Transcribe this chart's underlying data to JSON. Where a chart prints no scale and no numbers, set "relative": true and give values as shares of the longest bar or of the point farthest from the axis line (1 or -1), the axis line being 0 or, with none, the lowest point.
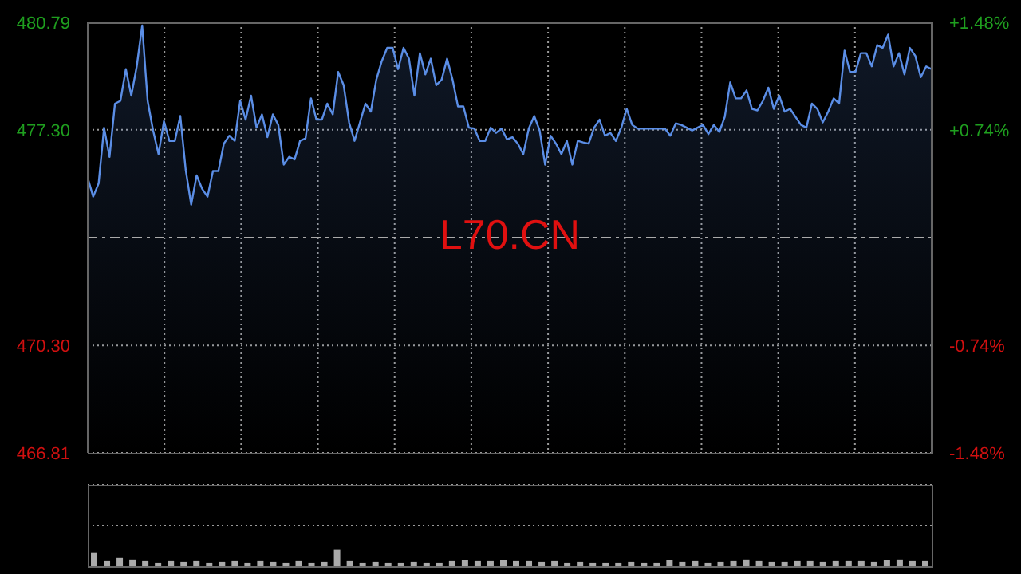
{
  "chart_data": [
    {
      "type": "area",
      "annotations": [
        "L70.CN"
      ],
      "categories": [
        null,
        null,
        null,
        null,
        null,
        null,
        null,
        null,
        null,
        null,
        null,
        null,
        null,
        null,
        null,
        null,
        null,
        null,
        null,
        null,
        null,
        null,
        null,
        null,
        null,
        null,
        null,
        null,
        null,
        null,
        null,
        null,
        null,
        null,
        null,
        null,
        null,
        null,
        null,
        null,
        null,
        null,
        null,
        null,
        null,
        null,
        null,
        null,
        null,
        null,
        null,
        null,
        null,
        null,
        null,
        null,
        null,
        null,
        null,
        null,
        null,
        null,
        null,
        null,
        null,
        null,
        null,
        null,
        null,
        null,
        null,
        null,
        null,
        null,
        null,
        null,
        null,
        null,
        null,
        null,
        null,
        null,
        null,
        null,
        null,
        null,
        null,
        null,
        null,
        null,
        null,
        null,
        null,
        null,
        null,
        null,
        null,
        null,
        null,
        null,
        null,
        null,
        null,
        null,
        null,
        null,
        null,
        null,
        null,
        null,
        null,
        null,
        null,
        null,
        null,
        null,
        null,
        null,
        null,
        null,
        null,
        null,
        null,
        null,
        null,
        null,
        null,
        null,
        null,
        null,
        null,
        null,
        null,
        null,
        null,
        null,
        null,
        null,
        null,
        null,
        null,
        null,
        null,
        null,
        null,
        null,
        null,
        null,
        null,
        null,
        null,
        null,
        null,
        null,
        null,
        null
      ],
      "series": [
        {
          "color": "#5b8ee6",
          "values": [
            475.73,
            475.13,
            475.56,
            477.37,
            476.42,
            478.15,
            478.24,
            479.27,
            478.41,
            479.36,
            480.69,
            478.24,
            477.28,
            476.51,
            477.58,
            476.94,
            476.94,
            477.75,
            475.99,
            474.87,
            475.82,
            475.39,
            475.13,
            475.96,
            475.96,
            476.85,
            477.11,
            476.94,
            478.24,
            477.63,
            478.41,
            477.37,
            477.8,
            477.06,
            477.8,
            477.46,
            476.17,
            476.42,
            476.34,
            476.94,
            477.02,
            478.32,
            477.63,
            477.63,
            478.15,
            477.8,
            479.18,
            478.75,
            477.54,
            476.94,
            477.54,
            478.15,
            477.89,
            478.93,
            479.53,
            479.96,
            479.96,
            479.27,
            479.96,
            479.61,
            478.41,
            479.79,
            479.1,
            479.61,
            478.75,
            478.93,
            479.61,
            478.93,
            478.06,
            478.06,
            477.37,
            477.34,
            476.94,
            476.94,
            477.37,
            477.2,
            477.34,
            476.99,
            477.06,
            476.85,
            476.51,
            477.34,
            477.75,
            477.28,
            476.17,
            477.11,
            476.85,
            476.51,
            476.94,
            476.17,
            476.94,
            476.89,
            476.85,
            477.37,
            477.63,
            477.11,
            477.2,
            476.94,
            477.37,
            477.98,
            477.46,
            477.34,
            477.34,
            477.34,
            477.34,
            477.34,
            477.34,
            477.11,
            477.51,
            477.46,
            477.37,
            477.28,
            477.37,
            477.46,
            477.16,
            477.46,
            477.23,
            477.72,
            478.84,
            478.32,
            478.32,
            478.58,
            477.98,
            477.93,
            478.24,
            478.67,
            477.98,
            478.41,
            477.89,
            477.98,
            477.72,
            477.46,
            477.37,
            478.15,
            477.98,
            477.54,
            477.89,
            478.32,
            478.15,
            479.87,
            479.18,
            479.18,
            479.79,
            479.79,
            479.36,
            480.05,
            479.96,
            480.39,
            479.36,
            479.79,
            479.1,
            479.96,
            479.7,
            479.01,
            479.36,
            479.27
          ]
        }
      ],
      "ylim": [
        466.81,
        480.79
      ],
      "yticks": [
        466.81,
        {
          "value": 470.3,
          "label": "470.30"
        },
        {
          "value": 477.3,
          "label": "477.30"
        },
        480.79
      ],
      "y2lim": [
        -1.48,
        1.48
      ],
      "y2ticks": [
        {
          "value": -1.48,
          "label": "-1.48%"
        },
        {
          "value": -0.74,
          "label": "-0.74%"
        },
        {
          "value": 0.74,
          "label": "+0.74%"
        },
        {
          "value": 1.48,
          "label": "+1.48%"
        }
      ],
      "ref_lines": [
        {
          "axis": "y",
          "value": 473.8,
          "color": "#aaaaaa",
          "line_style": "dashed"
        }
      ],
      "grid": true
    },
    {
      "type": "bar",
      "relative": true,
      "grid": true,
      "categories": [
        null,
        null,
        null,
        null,
        null,
        null,
        null,
        null,
        null,
        null,
        null,
        null,
        null,
        null,
        null,
        null,
        null,
        null,
        null,
        null,
        null,
        null,
        null,
        null,
        null,
        null,
        null,
        null,
        null,
        null,
        null,
        null,
        null,
        null,
        null,
        null,
        null,
        null,
        null,
        null,
        null,
        null,
        null,
        null,
        null,
        null,
        null,
        null,
        null,
        null,
        null,
        null,
        null,
        null,
        null,
        null,
        null,
        null,
        null,
        null,
        null,
        null,
        null,
        null,
        null,
        null
      ],
      "series": [
        {
          "color": "#aaaaaa",
          "values": [
            0.8,
            0.3,
            0.5,
            0.4,
            0.3,
            0.2,
            0.3,
            0.25,
            0.3,
            0.2,
            0.25,
            0.3,
            0.2,
            0.3,
            0.25,
            0.2,
            0.3,
            0.2,
            0.25,
            1,
            0.3,
            0.2,
            0.25,
            0.2,
            0.2,
            0.25,
            0.2,
            0.2,
            0.3,
            0.35,
            0.3,
            0.3,
            0.35,
            0.3,
            0.3,
            0.25,
            0.3,
            0.2,
            0.25,
            0.2,
            0.2,
            0.2,
            0.25,
            0.2,
            0.2,
            0.35,
            0.25,
            0.3,
            0.2,
            0.25,
            0.3,
            0.4,
            0.3,
            0.25,
            0.25,
            0.3,
            0.3,
            0.25,
            0.3,
            0.3,
            0.3,
            0.25,
            0.35,
            0.4,
            0.3,
            0.3
          ]
        }
      ]
    }
  ]
}
